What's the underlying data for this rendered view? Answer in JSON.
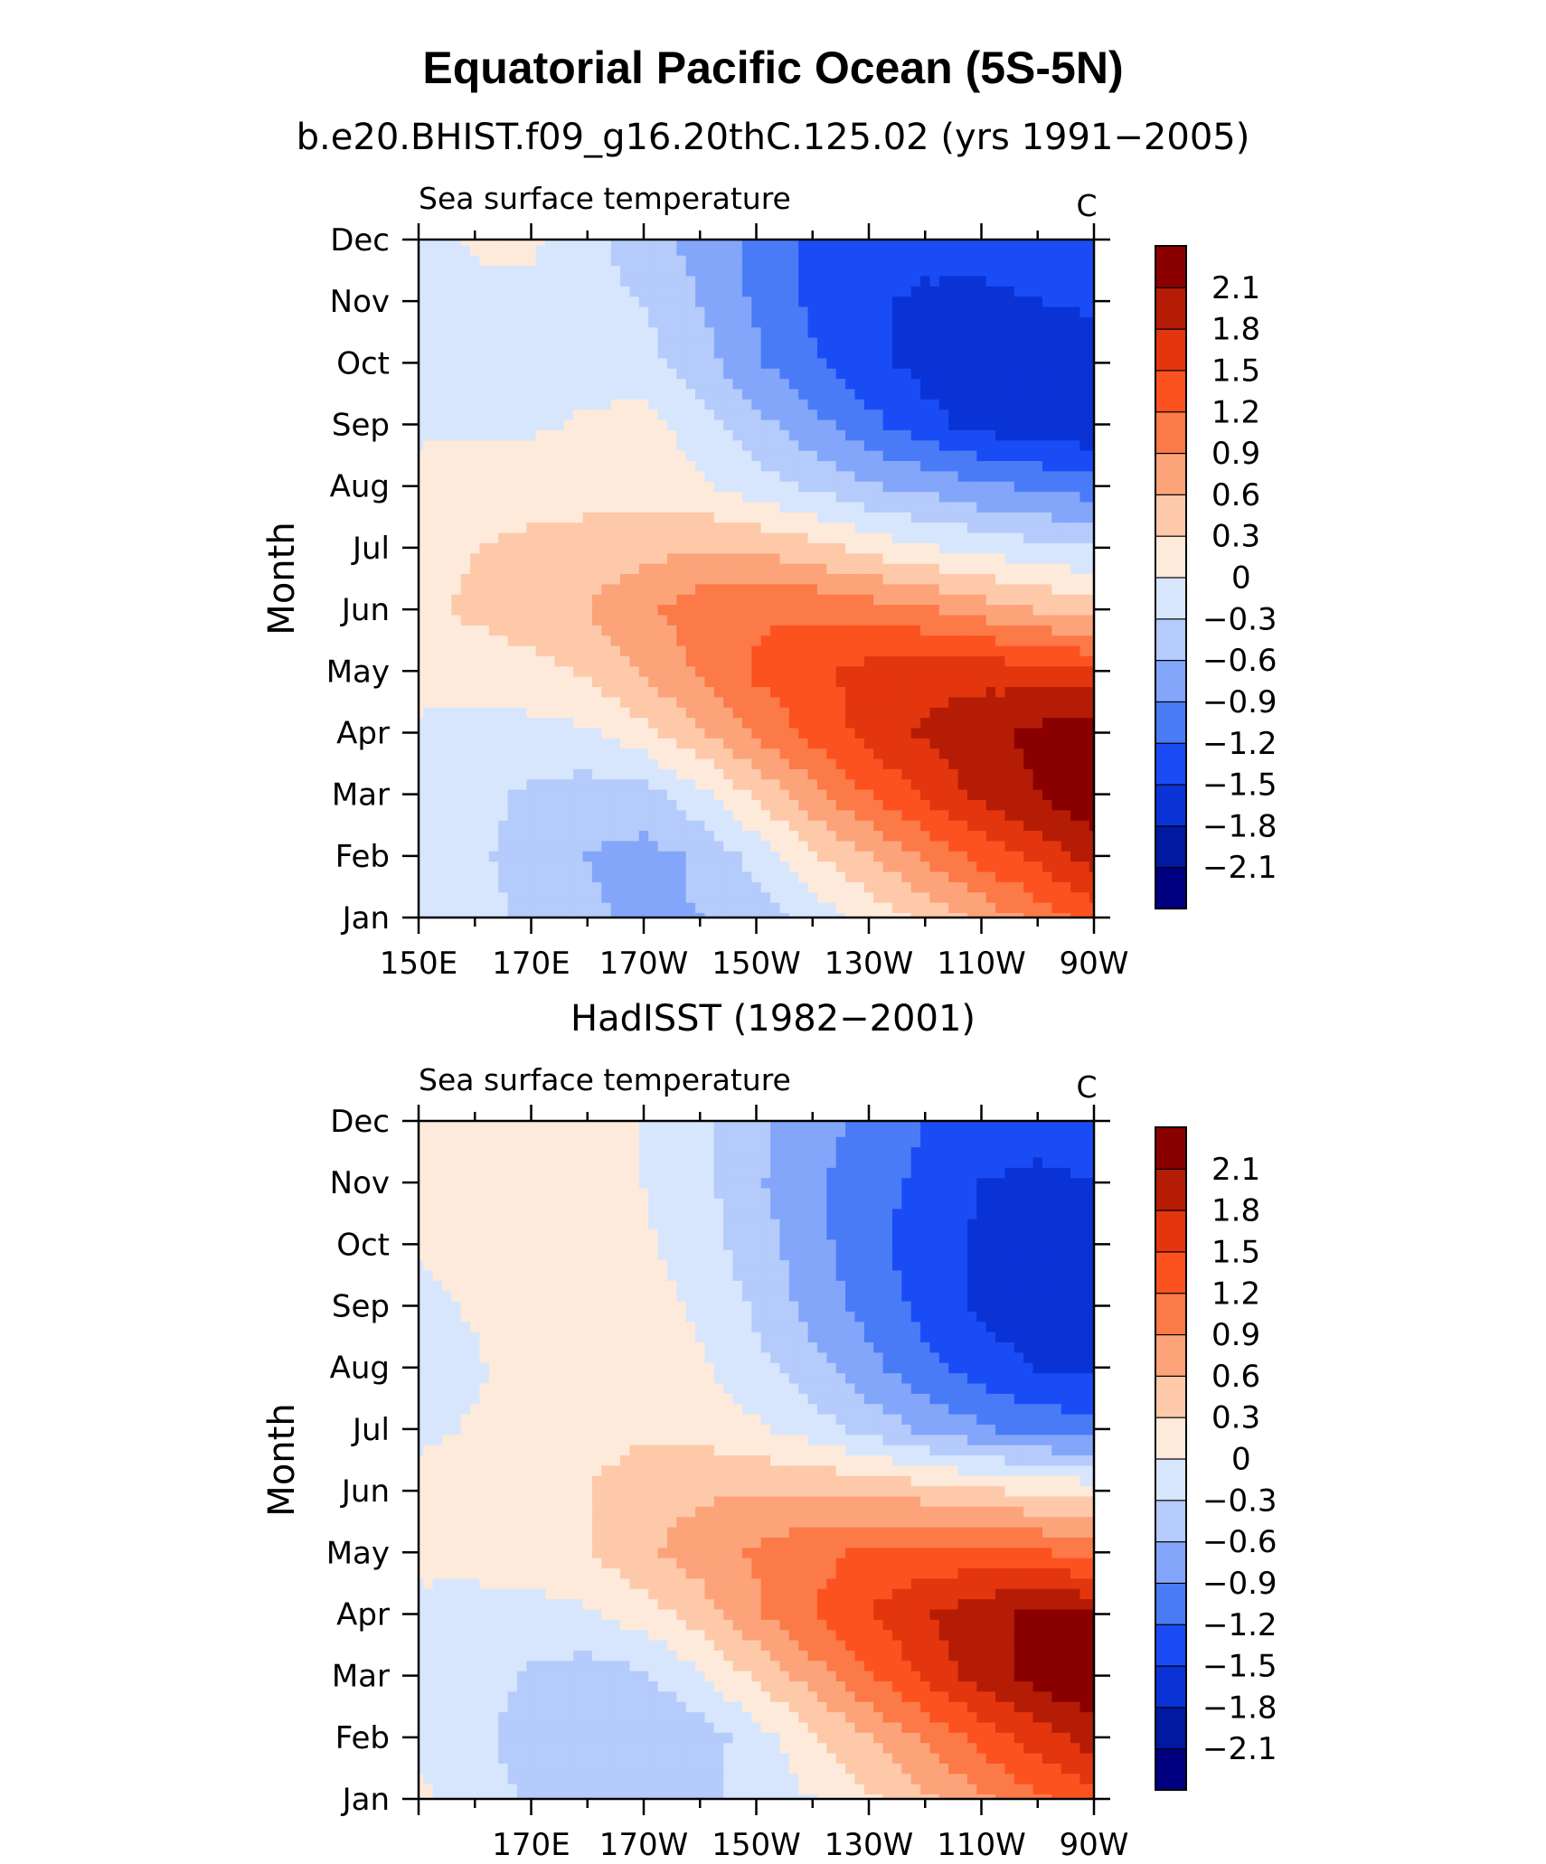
{
  "figure": {
    "title": "Equatorial Pacific Ocean (5S-5N)"
  },
  "colors": {
    "levels": [
      "#000080",
      "#0019a0",
      "#0a33d6",
      "#1a4cf5",
      "#4a7bf7",
      "#83a6fa",
      "#b4cbfb",
      "#d7e6fc",
      "#fdeadb",
      "#fdc9a9",
      "#fca37a",
      "#fb7a47",
      "#fc5220",
      "#e3360e",
      "#b51c06",
      "#8a0000"
    ]
  },
  "chart_data": [
    {
      "type": "contour",
      "title": "b.e20.BHIST.f09_g16.20thC.125.02 (yrs 1991−2005)",
      "left_label": "Sea surface temperature",
      "right_label": "C",
      "ylabel": "Month",
      "xlabel": "",
      "x_tick_labels": [
        "150E",
        "170E",
        "170W",
        "150W",
        "130W",
        "110W",
        "90W"
      ],
      "y_tick_labels": [
        "Jan",
        "Feb",
        "Mar",
        "Apr",
        "May",
        "Jun",
        "Jul",
        "Aug",
        "Sep",
        "Oct",
        "Nov",
        "Dec"
      ],
      "xlim": [
        150,
        270
      ],
      "ylim": [
        1,
        12
      ],
      "x": [
        150,
        160,
        170,
        180,
        190,
        200,
        210,
        220,
        230,
        240,
        250,
        260,
        270
      ],
      "y": [
        1,
        2,
        3,
        4,
        5,
        6,
        7,
        8,
        9,
        10,
        11,
        12
      ],
      "z": [
        [
          -0.1,
          -0.2,
          -0.35,
          -0.55,
          -0.65,
          -0.6,
          -0.45,
          -0.2,
          0.1,
          0.4,
          0.7,
          1.0,
          1.35
        ],
        [
          -0.1,
          -0.25,
          -0.4,
          -0.6,
          -0.7,
          -0.55,
          -0.2,
          0.25,
          0.6,
          0.95,
          1.3,
          1.6,
          1.95
        ],
        [
          -0.1,
          -0.2,
          -0.35,
          -0.45,
          -0.4,
          -0.1,
          0.35,
          0.8,
          1.2,
          1.55,
          1.9,
          2.1,
          2.35
        ],
        [
          -0.05,
          -0.1,
          -0.1,
          -0.05,
          0.2,
          0.55,
          0.95,
          1.3,
          1.6,
          1.85,
          2.0,
          2.2,
          2.3
        ],
        [
          0.1,
          0.15,
          0.2,
          0.35,
          0.65,
          0.95,
          1.25,
          1.45,
          1.6,
          1.7,
          1.7,
          1.6,
          1.55
        ],
        [
          0.25,
          0.35,
          0.45,
          0.6,
          0.85,
          1.05,
          1.15,
          1.15,
          1.05,
          0.95,
          0.75,
          0.6,
          0.45
        ],
        [
          0.2,
          0.3,
          0.35,
          0.4,
          0.5,
          0.6,
          0.55,
          0.4,
          0.2,
          0.05,
          -0.1,
          -0.2,
          -0.3
        ],
        [
          0.1,
          0.2,
          0.2,
          0.2,
          0.2,
          0.05,
          -0.15,
          -0.35,
          -0.55,
          -0.7,
          -0.85,
          -0.95,
          -1.05
        ],
        [
          -0.05,
          -0.05,
          -0.05,
          0.05,
          0.15,
          -0.2,
          -0.5,
          -0.8,
          -1.1,
          -1.4,
          -1.6,
          -1.7,
          -1.75
        ],
        [
          -0.15,
          -0.15,
          -0.15,
          -0.15,
          -0.2,
          -0.45,
          -0.85,
          -1.15,
          -1.4,
          -1.6,
          -1.75,
          -1.75,
          -1.7
        ],
        [
          -0.05,
          -0.1,
          -0.05,
          -0.15,
          -0.3,
          -0.6,
          -0.95,
          -1.25,
          -1.45,
          -1.55,
          -1.55,
          -1.5,
          -1.45
        ],
        [
          -0.15,
          0.05,
          0.05,
          -0.2,
          -0.5,
          -0.7,
          -1.0,
          -1.25,
          -1.35,
          -1.4,
          -1.4,
          -1.35,
          -1.3
        ]
      ],
      "levels": [
        -2.1,
        -1.8,
        -1.5,
        -1.2,
        -0.9,
        -0.6,
        -0.3,
        0,
        0.3,
        0.6,
        0.9,
        1.2,
        1.5,
        1.8,
        2.1
      ],
      "colorbar_labels": [
        "2.1",
        "1.8",
        "1.5",
        "1.2",
        "0.9",
        "0.6",
        "0.3",
        "0",
        "−0.3",
        "−0.6",
        "−0.9",
        "−1.2",
        "−1.5",
        "−1.8",
        "−2.1"
      ],
      "grid": false
    },
    {
      "type": "contour",
      "title": "HadISST (1982−2001)",
      "left_label": "Sea surface temperature",
      "right_label": "C",
      "ylabel": "Month",
      "xlabel": "",
      "x_tick_labels": [
        "170E",
        "170W",
        "150W",
        "130W",
        "110W",
        "90W"
      ],
      "y_tick_labels": [
        "Jan",
        "Feb",
        "Mar",
        "Apr",
        "May",
        "Jun",
        "Jul",
        "Aug",
        "Sep",
        "Oct",
        "Nov",
        "Dec"
      ],
      "xlim": [
        150,
        270
      ],
      "ylim": [
        1,
        12
      ],
      "x": [
        150,
        160,
        170,
        180,
        190,
        200,
        210,
        220,
        230,
        240,
        250,
        260,
        270
      ],
      "y": [
        1,
        2,
        3,
        4,
        5,
        6,
        7,
        8,
        9,
        10,
        11,
        12
      ],
      "z": [
        [
          0.05,
          -0.15,
          -0.35,
          -0.45,
          -0.45,
          -0.35,
          -0.2,
          0.0,
          0.25,
          0.55,
          0.85,
          1.15,
          1.4
        ],
        [
          -0.05,
          -0.2,
          -0.45,
          -0.55,
          -0.55,
          -0.45,
          -0.15,
          0.25,
          0.6,
          0.95,
          1.3,
          1.65,
          1.95
        ],
        [
          -0.05,
          -0.15,
          -0.35,
          -0.45,
          -0.35,
          -0.05,
          0.35,
          0.75,
          1.15,
          1.55,
          1.95,
          2.25,
          2.35
        ],
        [
          -0.05,
          -0.1,
          -0.1,
          -0.05,
          0.15,
          0.45,
          0.85,
          1.2,
          1.5,
          1.8,
          2.0,
          2.2,
          2.1
        ],
        [
          0.05,
          0.1,
          0.15,
          0.3,
          0.55,
          0.75,
          0.95,
          1.1,
          1.25,
          1.3,
          1.3,
          1.25,
          1.1
        ],
        [
          0.15,
          0.2,
          0.25,
          0.3,
          0.45,
          0.55,
          0.6,
          0.6,
          0.55,
          0.45,
          0.35,
          0.25,
          0.2
        ],
        [
          -0.1,
          0.05,
          0.15,
          0.2,
          0.25,
          0.2,
          0.05,
          -0.15,
          -0.4,
          -0.65,
          -0.85,
          -1.0,
          -1.1
        ],
        [
          -0.2,
          -0.05,
          0.15,
          0.2,
          0.2,
          0.05,
          -0.2,
          -0.5,
          -0.8,
          -1.1,
          -1.35,
          -1.5,
          -1.55
        ],
        [
          -0.1,
          0.05,
          0.25,
          0.3,
          0.15,
          -0.05,
          -0.35,
          -0.7,
          -1.0,
          -1.3,
          -1.55,
          -1.7,
          -1.7
        ],
        [
          0.05,
          0.1,
          0.15,
          0.15,
          0.05,
          -0.15,
          -0.45,
          -0.8,
          -1.1,
          -1.35,
          -1.55,
          -1.7,
          -1.65
        ],
        [
          0.1,
          0.15,
          0.15,
          0.1,
          0.0,
          -0.2,
          -0.55,
          -0.85,
          -1.05,
          -1.3,
          -1.5,
          -1.55,
          -1.5
        ],
        [
          0.1,
          0.1,
          0.1,
          0.1,
          0.0,
          -0.2,
          -0.5,
          -0.8,
          -0.95,
          -1.2,
          -1.4,
          -1.4,
          -1.35
        ]
      ],
      "levels": [
        -2.1,
        -1.8,
        -1.5,
        -1.2,
        -0.9,
        -0.6,
        -0.3,
        0,
        0.3,
        0.6,
        0.9,
        1.2,
        1.5,
        1.8,
        2.1
      ],
      "colorbar_labels": [
        "2.1",
        "1.8",
        "1.5",
        "1.2",
        "0.9",
        "0.6",
        "0.3",
        "0",
        "−0.3",
        "−0.6",
        "−0.9",
        "−1.2",
        "−1.5",
        "−1.8",
        "−2.1"
      ],
      "grid": false
    }
  ]
}
